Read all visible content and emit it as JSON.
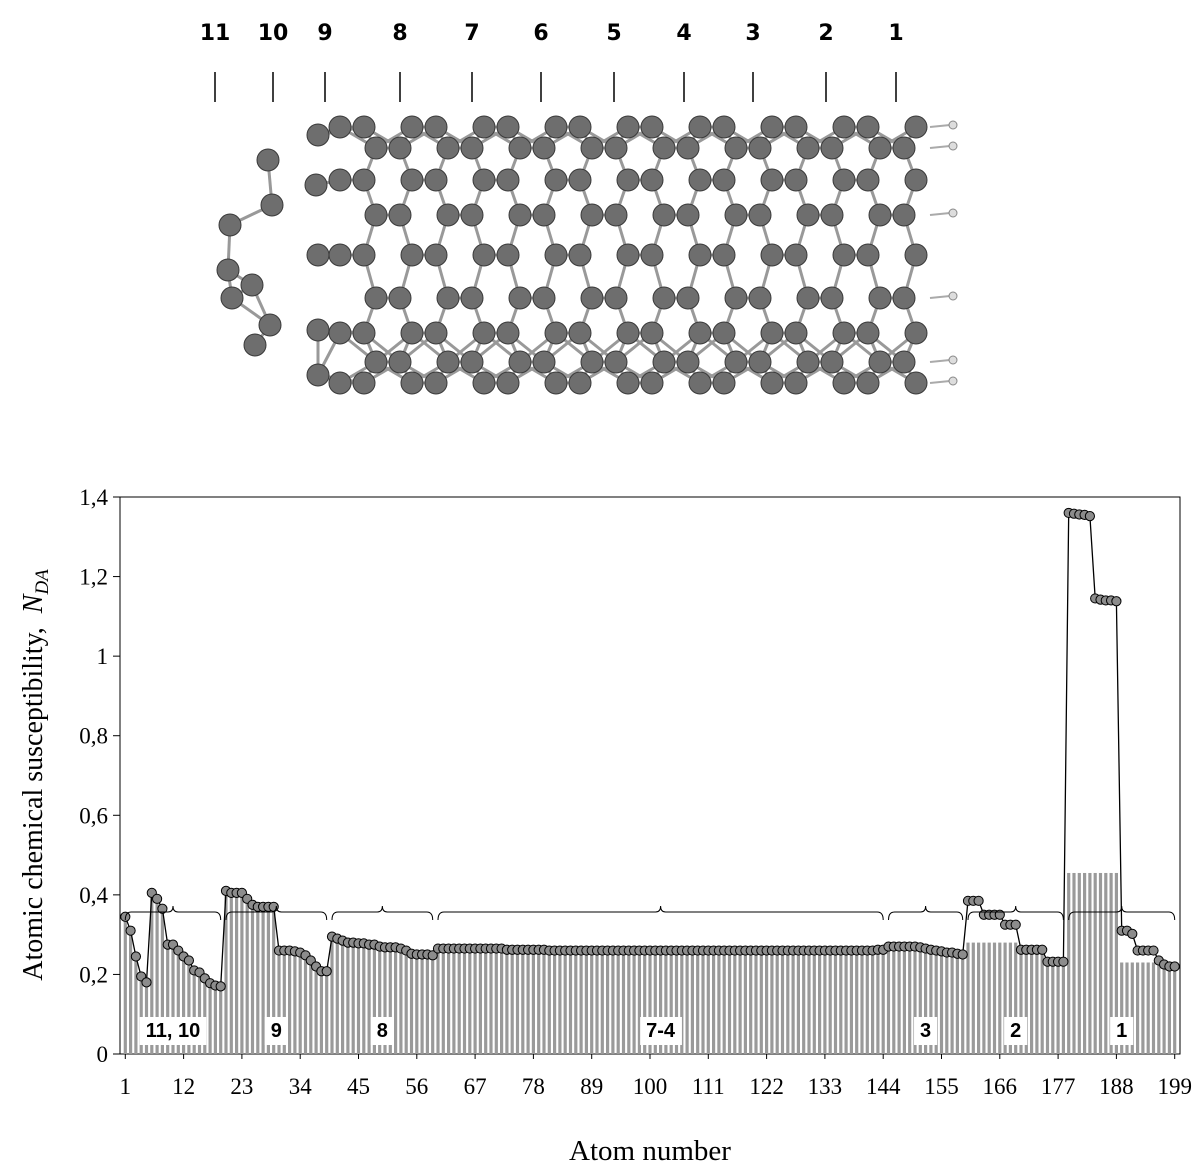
{
  "molecule": {
    "labels": [
      "11",
      "10",
      "9",
      "8",
      "7",
      "6",
      "5",
      "4",
      "3",
      "2",
      "1"
    ]
  },
  "chart_data": {
    "type": "combo",
    "y_label": "Atomic chemical susceptibility,",
    "y_label_symbol": "N",
    "y_label_subscript": "DA",
    "x_label": "Atom number",
    "x": [
      1,
      2,
      3,
      4,
      5,
      6,
      7,
      8,
      9,
      10,
      11,
      12,
      13,
      14,
      15,
      16,
      17,
      18,
      19,
      20,
      21,
      22,
      23,
      24,
      25,
      26,
      27,
      28,
      29,
      30,
      31,
      32,
      33,
      34,
      35,
      36,
      37,
      38,
      39,
      40,
      41,
      42,
      43,
      44,
      45,
      46,
      47,
      48,
      49,
      50,
      51,
      52,
      53,
      54,
      55,
      56,
      57,
      58,
      59,
      60,
      61,
      62,
      63,
      64,
      65,
      66,
      67,
      68,
      69,
      70,
      71,
      72,
      73,
      74,
      75,
      76,
      77,
      78,
      79,
      80,
      81,
      82,
      83,
      84,
      85,
      86,
      87,
      88,
      89,
      90,
      91,
      92,
      93,
      94,
      95,
      96,
      97,
      98,
      99,
      100,
      101,
      102,
      103,
      104,
      105,
      106,
      107,
      108,
      109,
      110,
      111,
      112,
      113,
      114,
      115,
      116,
      117,
      118,
      119,
      120,
      121,
      122,
      123,
      124,
      125,
      126,
      127,
      128,
      129,
      130,
      131,
      132,
      133,
      134,
      135,
      136,
      137,
      138,
      139,
      140,
      141,
      142,
      143,
      144,
      145,
      146,
      147,
      148,
      149,
      150,
      151,
      152,
      153,
      154,
      155,
      156,
      157,
      158,
      159,
      160,
      161,
      162,
      163,
      164,
      165,
      166,
      167,
      168,
      169,
      170,
      171,
      172,
      173,
      174,
      175,
      176,
      177,
      178,
      179,
      180,
      181,
      182,
      183,
      184,
      185,
      186,
      187,
      188,
      189,
      190,
      191,
      192,
      193,
      194,
      195,
      196,
      197,
      198,
      199
    ],
    "series": [
      {
        "type": "bar",
        "color": "#9a9a9a",
        "values": [
          0.345,
          0.31,
          0.245,
          0.195,
          0.18,
          0.405,
          0.39,
          0.365,
          0.275,
          0.275,
          0.26,
          0.245,
          0.235,
          0.21,
          0.205,
          0.19,
          0.178,
          0.172,
          0.17,
          0.41,
          0.405,
          0.405,
          0.405,
          0.39,
          0.375,
          0.37,
          0.37,
          0.37,
          0.37,
          0.26,
          0.26,
          0.26,
          0.258,
          0.255,
          0.248,
          0.235,
          0.22,
          0.208,
          0.208,
          0.295,
          0.29,
          0.285,
          0.28,
          0.28,
          0.278,
          0.278,
          0.275,
          0.275,
          0.27,
          0.268,
          0.268,
          0.268,
          0.265,
          0.26,
          0.252,
          0.25,
          0.25,
          0.25,
          0.248,
          0.265,
          0.265,
          0.265,
          0.265,
          0.265,
          0.265,
          0.265,
          0.265,
          0.265,
          0.265,
          0.265,
          0.265,
          0.265,
          0.262,
          0.262,
          0.262,
          0.262,
          0.262,
          0.262,
          0.262,
          0.262,
          0.26,
          0.26,
          0.26,
          0.26,
          0.26,
          0.26,
          0.26,
          0.26,
          0.26,
          0.26,
          0.26,
          0.26,
          0.26,
          0.26,
          0.26,
          0.26,
          0.26,
          0.26,
          0.26,
          0.26,
          0.26,
          0.26,
          0.26,
          0.26,
          0.26,
          0.26,
          0.26,
          0.26,
          0.26,
          0.26,
          0.26,
          0.26,
          0.26,
          0.26,
          0.26,
          0.26,
          0.26,
          0.26,
          0.26,
          0.26,
          0.26,
          0.26,
          0.26,
          0.26,
          0.26,
          0.26,
          0.26,
          0.26,
          0.26,
          0.26,
          0.26,
          0.26,
          0.26,
          0.26,
          0.26,
          0.26,
          0.26,
          0.26,
          0.26,
          0.26,
          0.26,
          0.26,
          0.262,
          0.262,
          0.27,
          0.27,
          0.27,
          0.27,
          0.27,
          0.27,
          0.268,
          0.265,
          0.262,
          0.26,
          0.258,
          0.255,
          0.255,
          0.252,
          0.25,
          0.28,
          0.28,
          0.28,
          0.28,
          0.28,
          0.28,
          0.28,
          0.28,
          0.28,
          0.28,
          0.262,
          0.262,
          0.262,
          0.262,
          0.262,
          0.232,
          0.232,
          0.232,
          0.232,
          0.455,
          0.455,
          0.455,
          0.455,
          0.455,
          0.455,
          0.455,
          0.455,
          0.455,
          0.455,
          0.23,
          0.23,
          0.23,
          0.23,
          0.23,
          0.23,
          0.23,
          0.235,
          0.225,
          0.22,
          0.22
        ]
      },
      {
        "type": "line",
        "color": "#000000",
        "marker_color": "#8c8c8c",
        "values": [
          0.345,
          0.31,
          0.245,
          0.195,
          0.18,
          0.405,
          0.39,
          0.365,
          0.275,
          0.275,
          0.26,
          0.245,
          0.235,
          0.21,
          0.205,
          0.19,
          0.178,
          0.172,
          0.17,
          0.41,
          0.405,
          0.405,
          0.405,
          0.39,
          0.375,
          0.37,
          0.37,
          0.37,
          0.37,
          0.26,
          0.26,
          0.26,
          0.258,
          0.255,
          0.248,
          0.235,
          0.22,
          0.208,
          0.208,
          0.295,
          0.29,
          0.285,
          0.28,
          0.28,
          0.278,
          0.278,
          0.275,
          0.275,
          0.27,
          0.268,
          0.268,
          0.268,
          0.265,
          0.26,
          0.252,
          0.25,
          0.25,
          0.25,
          0.248,
          0.265,
          0.265,
          0.265,
          0.265,
          0.265,
          0.265,
          0.265,
          0.265,
          0.265,
          0.265,
          0.265,
          0.265,
          0.265,
          0.262,
          0.262,
          0.262,
          0.262,
          0.262,
          0.262,
          0.262,
          0.262,
          0.26,
          0.26,
          0.26,
          0.26,
          0.26,
          0.26,
          0.26,
          0.26,
          0.26,
          0.26,
          0.26,
          0.26,
          0.26,
          0.26,
          0.26,
          0.26,
          0.26,
          0.26,
          0.26,
          0.26,
          0.26,
          0.26,
          0.26,
          0.26,
          0.26,
          0.26,
          0.26,
          0.26,
          0.26,
          0.26,
          0.26,
          0.26,
          0.26,
          0.26,
          0.26,
          0.26,
          0.26,
          0.26,
          0.26,
          0.26,
          0.26,
          0.26,
          0.26,
          0.26,
          0.26,
          0.26,
          0.26,
          0.26,
          0.26,
          0.26,
          0.26,
          0.26,
          0.26,
          0.26,
          0.26,
          0.26,
          0.26,
          0.26,
          0.26,
          0.26,
          0.26,
          0.26,
          0.262,
          0.262,
          0.27,
          0.27,
          0.27,
          0.27,
          0.27,
          0.27,
          0.268,
          0.265,
          0.262,
          0.26,
          0.258,
          0.255,
          0.255,
          0.252,
          0.25,
          0.385,
          0.385,
          0.385,
          0.35,
          0.35,
          0.35,
          0.35,
          0.325,
          0.325,
          0.325,
          0.262,
          0.262,
          0.262,
          0.262,
          0.262,
          0.232,
          0.232,
          0.232,
          0.232,
          1.36,
          1.358,
          1.356,
          1.355,
          1.352,
          1.145,
          1.142,
          1.14,
          1.14,
          1.138,
          0.31,
          0.31,
          0.302,
          0.26,
          0.26,
          0.26,
          0.26,
          0.235,
          0.225,
          0.22,
          0.22
        ]
      }
    ],
    "groups": [
      {
        "label": "11, 10",
        "range": [
          1,
          19
        ]
      },
      {
        "label": "9",
        "range": [
          20,
          39
        ]
      },
      {
        "label": "8",
        "range": [
          40,
          59
        ]
      },
      {
        "label": "7-4",
        "range": [
          60,
          144
        ]
      },
      {
        "label": "3",
        "range": [
          145,
          159
        ]
      },
      {
        "label": "2",
        "range": [
          160,
          178
        ]
      },
      {
        "label": "1",
        "range": [
          179,
          199
        ]
      }
    ],
    "xlim": [
      0,
      200
    ],
    "xticks": [
      1,
      12,
      23,
      34,
      45,
      56,
      67,
      78,
      89,
      100,
      111,
      122,
      133,
      144,
      155,
      166,
      177,
      188,
      199
    ],
    "ylim": [
      0,
      1.4
    ],
    "yticks": [
      0,
      {
        "value": 0.2,
        "label": "0,2"
      },
      {
        "value": 0.4,
        "label": "0,4"
      },
      {
        "value": 0.6,
        "label": "0,6"
      },
      {
        "value": 0.8,
        "label": "0,8"
      },
      1,
      {
        "value": 1.2,
        "label": "1,2"
      },
      {
        "value": 1.4,
        "label": "1,4"
      }
    ],
    "grid": false
  }
}
